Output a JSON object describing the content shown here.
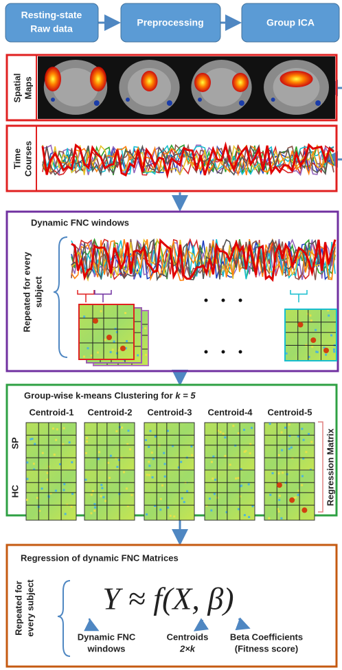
{
  "pipeline": [
    [
      "Resting-state",
      "Raw data"
    ],
    "Preprocessing",
    "Group ICA"
  ],
  "ica_outputs": {
    "spatial_maps": [
      "Spatial",
      "Maps"
    ],
    "time_courses": [
      "Time",
      "Courses"
    ]
  },
  "dynamic_fnc": {
    "title": "Dynamic FNC windows",
    "side_label": [
      "Repeated for every",
      "subject"
    ]
  },
  "clustering": {
    "title": "Group-wise k-means Clustering for ",
    "title_k": "k = 5",
    "centroids": [
      "Centroid-1",
      "Centroid-2",
      "Centroid-3",
      "Centroid-4",
      "Centroid-5"
    ],
    "groups": [
      "SP",
      "HC"
    ],
    "side_label": "Regression Matrix"
  },
  "regression": {
    "title": "Regression of dynamic FNC Matrices",
    "side_label": [
      "Repeated for",
      "every subject"
    ],
    "equation": "Y ≈ f(X, β)",
    "terms": [
      [
        "Dynamic FNC",
        "windows"
      ],
      [
        "Centroids",
        "2×k"
      ],
      [
        "Beta Coefficients",
        "(Fitness score)"
      ]
    ]
  }
}
